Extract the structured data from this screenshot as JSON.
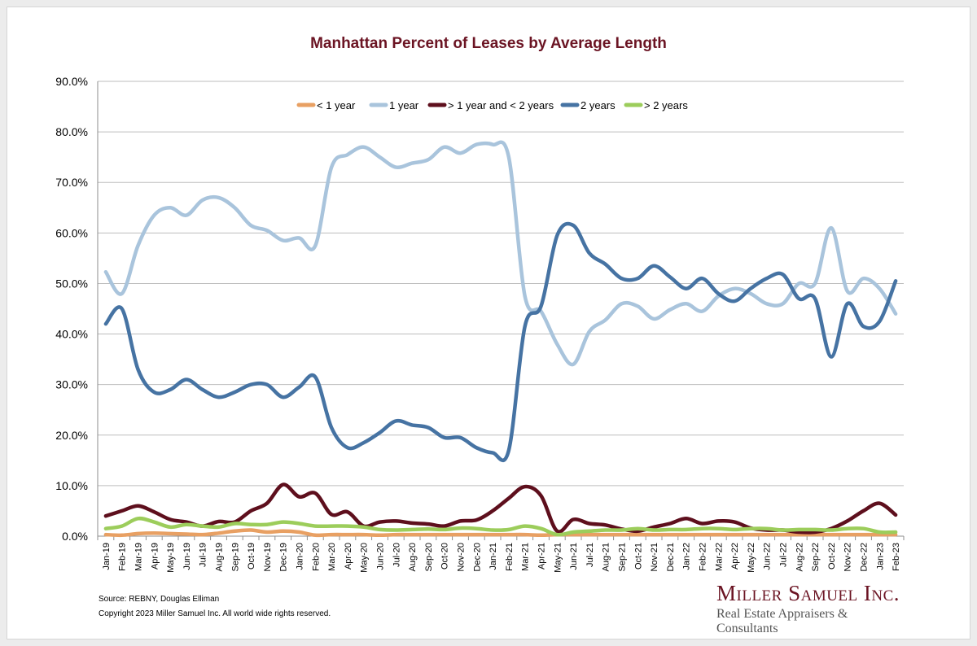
{
  "chart_data": {
    "type": "line",
    "title": "Manhattan Percent of Leases by Average Length",
    "xlabel": "",
    "ylabel": "",
    "ylim": [
      0,
      90
    ],
    "ytick_labels": [
      "0.0%",
      "10.0%",
      "20.0%",
      "30.0%",
      "40.0%",
      "50.0%",
      "60.0%",
      "70.0%",
      "80.0%",
      "90.0%"
    ],
    "grid": true,
    "legend_placement": "top",
    "categories": [
      "Jan-19",
      "Feb-19",
      "Mar-19",
      "Apr-19",
      "May-19",
      "Jun-19",
      "Jul-19",
      "Aug-19",
      "Sep-19",
      "Oct-19",
      "Nov-19",
      "Dec-19",
      "Jan-20",
      "Feb-20",
      "Mar-20",
      "Apr-20",
      "May-20",
      "Jun-20",
      "Jul-20",
      "Aug-20",
      "Sep-20",
      "Oct-20",
      "Nov-20",
      "Dec-20",
      "Jan-21",
      "Feb-21",
      "Mar-21",
      "Apr-21",
      "May-21",
      "Jun-21",
      "Jul-21",
      "Aug-21",
      "Sep-21",
      "Oct-21",
      "Nov-21",
      "Dec-21",
      "Jan-22",
      "Feb-22",
      "Mar-22",
      "Apr-22",
      "May-22",
      "Jun-22",
      "Jul-22",
      "Aug-22",
      "Sep-22",
      "Oct-22",
      "Nov-22",
      "Dec-22",
      "Jan-23",
      "Feb-23"
    ],
    "series": [
      {
        "name": "< 1 year",
        "color": "#e8a063",
        "values": [
          0.3,
          0.2,
          0.5,
          0.6,
          0.5,
          0.4,
          0.3,
          0.6,
          1.0,
          1.2,
          0.8,
          1.0,
          0.8,
          0.2,
          0.3,
          0.3,
          0.3,
          0.2,
          0.3,
          0.3,
          0.3,
          0.3,
          0.3,
          0.3,
          0.3,
          0.3,
          0.3,
          0.2,
          0.3,
          0.3,
          0.3,
          0.3,
          0.3,
          0.3,
          0.3,
          0.3,
          0.3,
          0.3,
          0.3,
          0.3,
          0.3,
          0.3,
          0.3,
          0.3,
          0.3,
          0.3,
          0.3,
          0.3,
          0.3,
          0.3
        ]
      },
      {
        "name": "1 year",
        "color": "#a9c4dc",
        "values": [
          52.3,
          48.0,
          57.5,
          63.5,
          65.0,
          63.5,
          66.5,
          67.0,
          65.0,
          61.5,
          60.5,
          58.5,
          59.0,
          57.5,
          73.0,
          75.5,
          77.0,
          75.0,
          73.0,
          73.8,
          74.5,
          77.0,
          75.8,
          77.5,
          77.5,
          75.0,
          47.5,
          44.5,
          38.0,
          34.0,
          40.5,
          42.8,
          46.0,
          45.5,
          43.0,
          44.8,
          46.0,
          44.5,
          47.5,
          49.0,
          48.0,
          46.0,
          46.0,
          50.0,
          50.0,
          61.0,
          48.5,
          51.0,
          49.0,
          44.0
        ]
      },
      {
        "name": "> 1 year and < 2 years",
        "color": "#5e0f1d",
        "values": [
          4.0,
          5.0,
          6.0,
          4.8,
          3.3,
          2.8,
          2.0,
          2.9,
          2.8,
          5.0,
          6.5,
          10.2,
          7.8,
          8.5,
          4.3,
          4.8,
          2.0,
          2.8,
          3.0,
          2.6,
          2.4,
          2.0,
          3.0,
          3.2,
          5.0,
          7.5,
          9.8,
          8.0,
          1.0,
          3.3,
          2.5,
          2.2,
          1.4,
          1.0,
          1.8,
          2.5,
          3.5,
          2.5,
          3.0,
          2.8,
          1.6,
          1.2,
          1.2,
          0.8,
          0.8,
          1.5,
          3.0,
          5.0,
          6.5,
          4.2
        ]
      },
      {
        "name": "2 years",
        "color": "#4673a3",
        "values": [
          42.0,
          45.0,
          33.0,
          28.5,
          29.0,
          31.0,
          29.0,
          27.5,
          28.5,
          30.0,
          30.0,
          27.5,
          29.5,
          31.5,
          21.5,
          17.5,
          18.5,
          20.5,
          22.8,
          22.0,
          21.5,
          19.5,
          19.5,
          17.5,
          16.5,
          17.0,
          41.5,
          45.5,
          59.5,
          61.5,
          56.0,
          53.8,
          51.0,
          51.0,
          53.5,
          51.3,
          49.0,
          51.0,
          48.0,
          46.5,
          49.0,
          51.0,
          51.8,
          47.0,
          47.0,
          35.5,
          46.0,
          41.5,
          42.5,
          50.5
        ]
      },
      {
        "name": "> 2 years",
        "color": "#9ccd5b",
        "values": [
          1.5,
          2.0,
          3.5,
          2.8,
          1.8,
          2.3,
          2.0,
          1.8,
          2.5,
          2.3,
          2.3,
          2.8,
          2.5,
          2.0,
          2.0,
          2.0,
          1.8,
          1.3,
          1.2,
          1.3,
          1.4,
          1.3,
          1.6,
          1.5,
          1.2,
          1.3,
          2.0,
          1.5,
          0.3,
          0.8,
          1.0,
          1.2,
          1.2,
          1.5,
          1.2,
          1.3,
          1.3,
          1.5,
          1.5,
          1.3,
          1.5,
          1.5,
          1.2,
          1.3,
          1.3,
          1.2,
          1.5,
          1.5,
          0.8,
          0.8
        ]
      }
    ]
  },
  "footer": {
    "source": "Source: REBNY, Douglas Elliman",
    "copyright": "Copyright 2023 Miller Samuel Inc.  All world wide rights reserved."
  },
  "logo": {
    "name": "Miller Samuel Inc.",
    "tagline": "Real Estate Appraisers & Consultants"
  }
}
